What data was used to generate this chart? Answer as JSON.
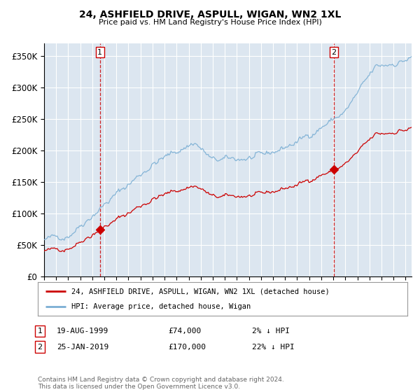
{
  "title": "24, ASHFIELD DRIVE, ASPULL, WIGAN, WN2 1XL",
  "subtitle": "Price paid vs. HM Land Registry's House Price Index (HPI)",
  "legend_label_red": "24, ASHFIELD DRIVE, ASPULL, WIGAN, WN2 1XL (detached house)",
  "legend_label_blue": "HPI: Average price, detached house, Wigan",
  "transaction1_date": "19-AUG-1999",
  "transaction1_price": "£74,000",
  "transaction1_hpi": "2% ↓ HPI",
  "transaction2_date": "25-JAN-2019",
  "transaction2_price": "£170,000",
  "transaction2_hpi": "22% ↓ HPI",
  "footnote": "Contains HM Land Registry data © Crown copyright and database right 2024.\nThis data is licensed under the Open Government Licence v3.0.",
  "ylim": [
    0,
    370000
  ],
  "yticks": [
    0,
    50000,
    100000,
    150000,
    200000,
    250000,
    300000,
    350000
  ],
  "start_year": 1995.0,
  "end_year": 2025.5,
  "sale1_year": 1999.625,
  "sale1_price": 74000,
  "sale2_year": 2019.05,
  "sale2_price": 170000,
  "background_color": "#ffffff",
  "plot_bg_color": "#dce6f0",
  "red_color": "#cc0000",
  "blue_color": "#7bafd4",
  "grid_color": "#ffffff"
}
